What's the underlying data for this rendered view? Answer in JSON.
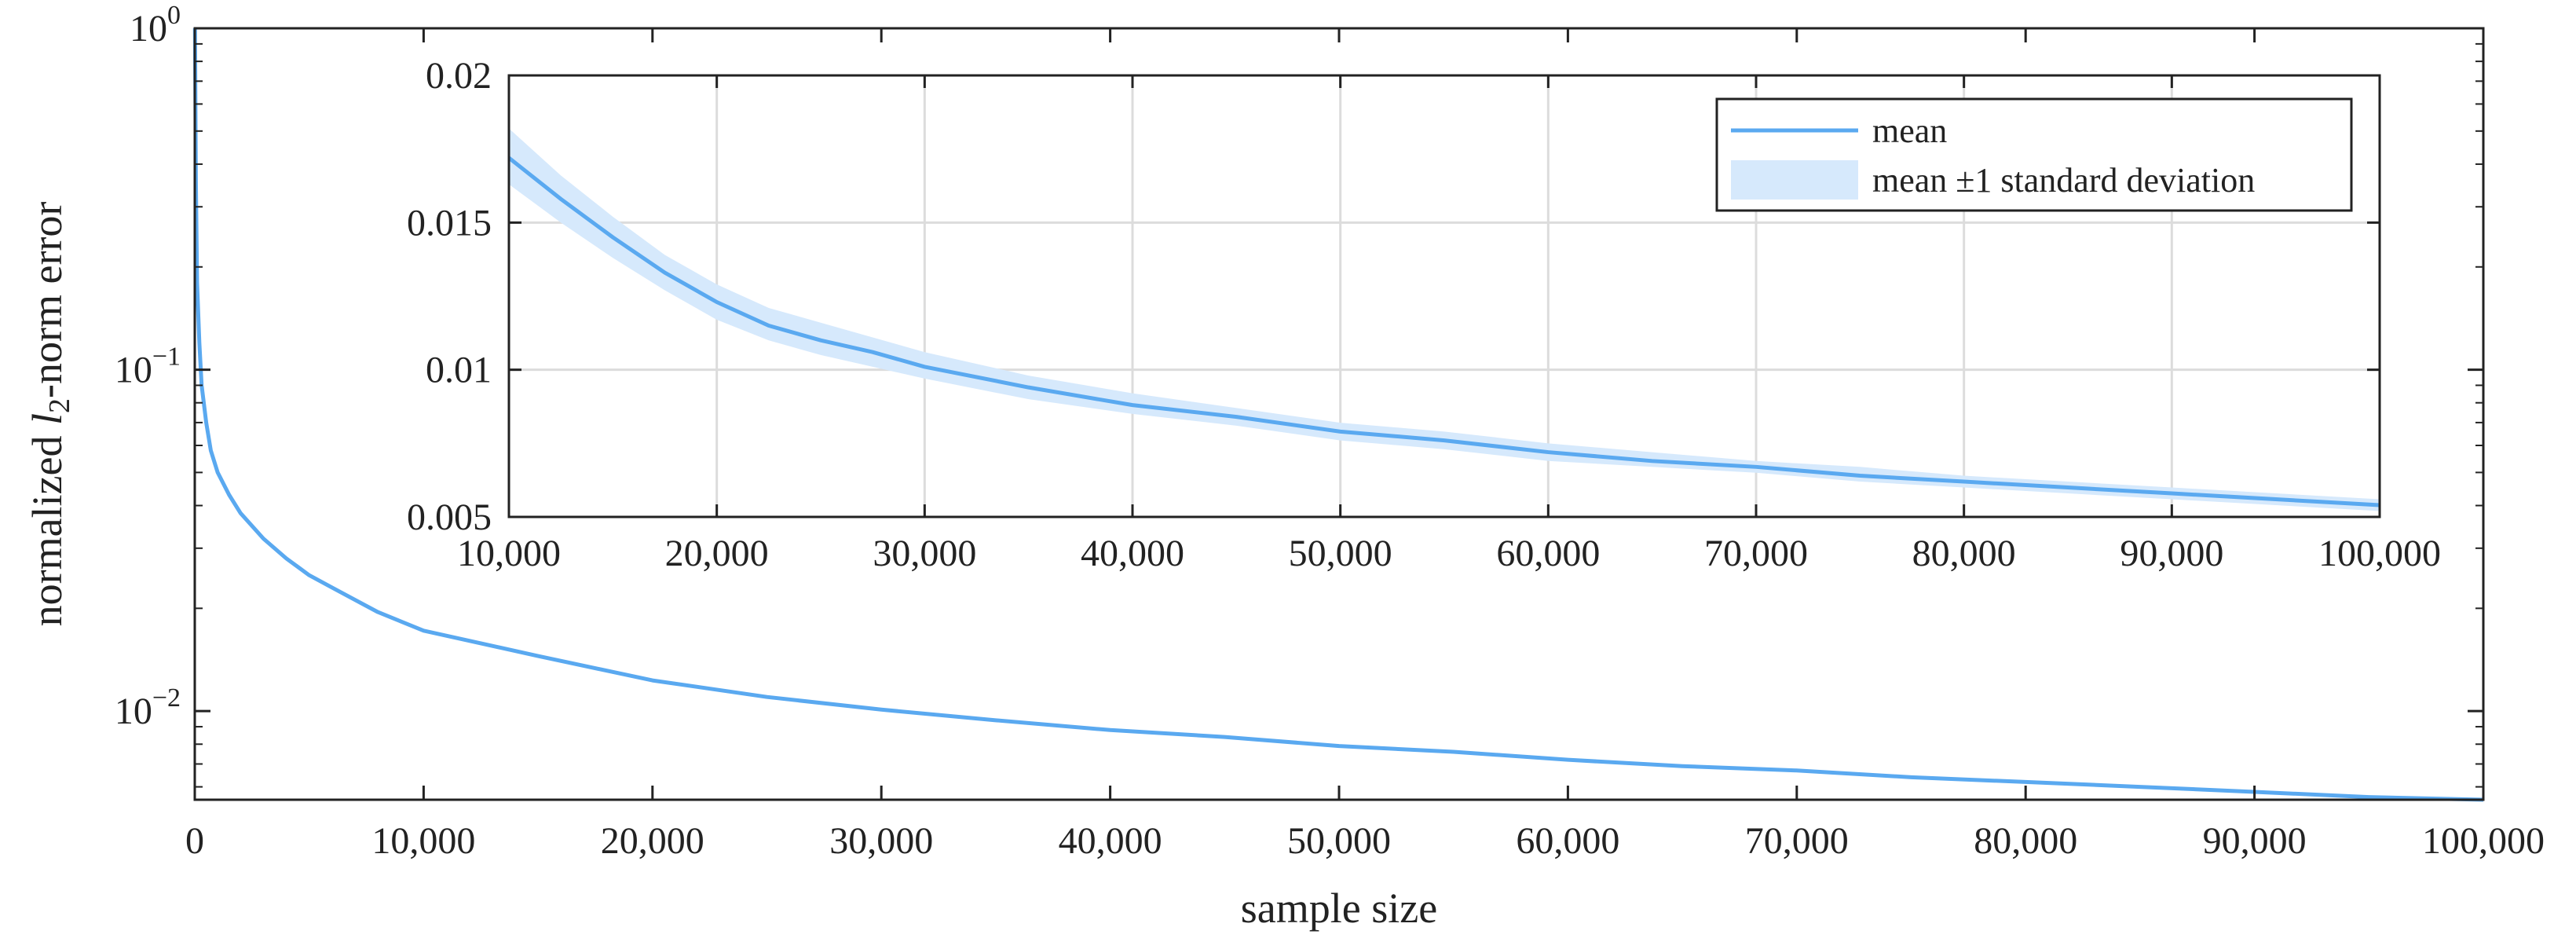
{
  "chart_data": [
    {
      "id": "main",
      "type": "line",
      "title": "",
      "xlabel": "sample size",
      "ylabel": {
        "prefix": "normalized ",
        "var": "l",
        "sub": "2",
        "suffix": "-norm error"
      },
      "xscale": "linear",
      "yscale": "log",
      "xlim": [
        0,
        100000
      ],
      "ylim": [
        0.0055,
        1
      ],
      "xticks": [
        0,
        10000,
        20000,
        30000,
        40000,
        50000,
        60000,
        70000,
        80000,
        90000,
        100000
      ],
      "xtick_labels": [
        "0",
        "10,000",
        "20,000",
        "30,000",
        "40,000",
        "50,000",
        "60,000",
        "70,000",
        "80,000",
        "90,000",
        "100,000"
      ],
      "yticks": [
        {
          "value": 1,
          "base": "10",
          "exp": "0"
        },
        {
          "value": 0.1,
          "base": "10",
          "exp": "−1"
        },
        {
          "value": 0.01,
          "base": "10",
          "exp": "−2"
        }
      ],
      "grid": false,
      "series": [
        {
          "name": "mean",
          "color": "#5aa9f0",
          "x": [
            10,
            50,
            100,
            200,
            300,
            500,
            700,
            1000,
            1500,
            2000,
            3000,
            4000,
            5000,
            6000,
            8000,
            10000,
            15000,
            20000,
            25000,
            30000,
            35000,
            40000,
            45000,
            50000,
            55000,
            60000,
            65000,
            70000,
            75000,
            80000,
            85000,
            90000,
            95000,
            100000
          ],
          "y": [
            1.0,
            0.35,
            0.18,
            0.12,
            0.09,
            0.07,
            0.058,
            0.05,
            0.043,
            0.038,
            0.032,
            0.028,
            0.025,
            0.023,
            0.0195,
            0.0172,
            0.0145,
            0.0123,
            0.011,
            0.0101,
            0.0094,
            0.0088,
            0.0084,
            0.0079,
            0.0076,
            0.0072,
            0.0069,
            0.0067,
            0.0064,
            0.0062,
            0.006,
            0.0058,
            0.0056,
            0.0054
          ]
        }
      ]
    },
    {
      "id": "inset",
      "type": "line",
      "title": "",
      "xscale": "linear",
      "yscale": "linear",
      "xlim": [
        10000,
        100000
      ],
      "ylim": [
        0.005,
        0.02
      ],
      "xticks": [
        10000,
        20000,
        30000,
        40000,
        50000,
        60000,
        70000,
        80000,
        90000,
        100000
      ],
      "xtick_labels": [
        "10,000",
        "20,000",
        "30,000",
        "40,000",
        "50,000",
        "60,000",
        "70,000",
        "80,000",
        "90,000",
        "100,000"
      ],
      "yticks": [
        0.005,
        0.01,
        0.015,
        0.02
      ],
      "ytick_labels": [
        "0.005",
        "0.01",
        "0.015",
        "0.02"
      ],
      "grid": true,
      "legend_position": "top-right",
      "series": [
        {
          "name": "mean",
          "color": "#5aa9f0",
          "x": [
            10000,
            12500,
            15000,
            17500,
            20000,
            22500,
            25000,
            27500,
            30000,
            35000,
            40000,
            45000,
            50000,
            55000,
            60000,
            65000,
            70000,
            75000,
            80000,
            85000,
            90000,
            95000,
            100000
          ],
          "y": [
            0.0172,
            0.0158,
            0.0145,
            0.0133,
            0.0123,
            0.0115,
            0.011,
            0.0106,
            0.0101,
            0.0094,
            0.0088,
            0.0084,
            0.0079,
            0.0076,
            0.0072,
            0.0069,
            0.0067,
            0.0064,
            0.0062,
            0.006,
            0.0058,
            0.0056,
            0.0054
          ]
        },
        {
          "name": "mean ±1 standard deviation",
          "type": "band",
          "color": "#d6e9fc",
          "x": [
            10000,
            12500,
            15000,
            17500,
            20000,
            22500,
            25000,
            27500,
            30000,
            35000,
            40000,
            45000,
            50000,
            55000,
            60000,
            65000,
            70000,
            75000,
            80000,
            85000,
            90000,
            95000,
            100000
          ],
          "lower": [
            0.0163,
            0.015,
            0.0138,
            0.0127,
            0.0117,
            0.011,
            0.0105,
            0.0101,
            0.0097,
            0.009,
            0.0085,
            0.0081,
            0.0076,
            0.0073,
            0.0069,
            0.0067,
            0.0065,
            0.0062,
            0.006,
            0.0058,
            0.0056,
            0.0054,
            0.0052
          ],
          "upper": [
            0.0182,
            0.0166,
            0.0152,
            0.0139,
            0.0129,
            0.0121,
            0.0116,
            0.0111,
            0.0106,
            0.0098,
            0.0092,
            0.0087,
            0.0082,
            0.0079,
            0.0075,
            0.0072,
            0.0069,
            0.0067,
            0.0064,
            0.0062,
            0.006,
            0.0058,
            0.0056
          ]
        }
      ]
    }
  ]
}
